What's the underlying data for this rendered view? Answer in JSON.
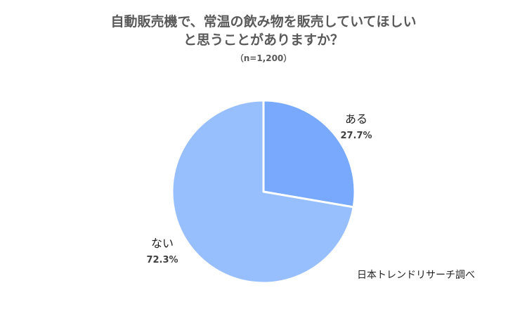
{
  "chart_data": {
    "type": "pie",
    "title": [
      "自動販売機で、常温の飲み物を販売していてほしい",
      "と思うことがありますか？"
    ],
    "subtitle": "（n=1,200）",
    "slices": [
      {
        "label": "ある",
        "value": 27.7,
        "value_label": "27.7%",
        "color": "#78a9fd"
      },
      {
        "label": "ない",
        "value": 72.3,
        "value_label": "72.3%",
        "color": "#98bffd"
      }
    ],
    "start_angle": "12 o'clock",
    "direction": "clockwise"
  },
  "source": "日本トレンドリサーチ調べ"
}
